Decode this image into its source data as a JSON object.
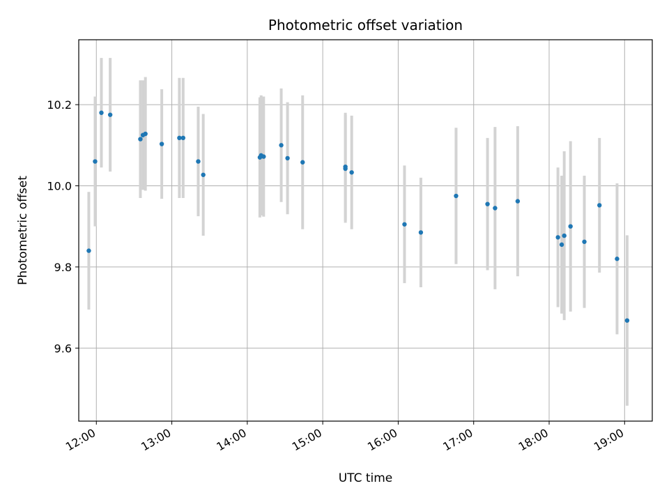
{
  "chart_data": {
    "type": "scatter",
    "title": "Photometric offset variation",
    "xlabel": "UTC time",
    "ylabel": "Photometric offset",
    "x_axis_type": "time",
    "xlim": [
      "11:46",
      "19:22"
    ],
    "ylim": [
      9.42,
      10.36
    ],
    "x_ticks": [
      "12:00",
      "13:00",
      "14:00",
      "15:00",
      "16:00",
      "17:00",
      "18:00",
      "19:00"
    ],
    "y_ticks": [
      "9.6",
      "9.8",
      "10.0",
      "10.2"
    ],
    "grid": true,
    "legend": "none",
    "marker_color": "#1f77b4",
    "errorbar_color": "#d3d3d3",
    "series": [
      {
        "points": [
          {
            "x": "11:54",
            "y": 9.84,
            "err": 0.145
          },
          {
            "x": "11:59",
            "y": 10.06,
            "err": 0.16
          },
          {
            "x": "12:04",
            "y": 10.18,
            "err": 0.135
          },
          {
            "x": "12:11",
            "y": 10.175,
            "err": 0.14
          },
          {
            "x": "12:35",
            "y": 10.115,
            "err": 0.145
          },
          {
            "x": "12:37",
            "y": 10.125,
            "err": 0.135
          },
          {
            "x": "12:39",
            "y": 10.128,
            "err": 0.14
          },
          {
            "x": "12:52",
            "y": 10.103,
            "err": 0.135
          },
          {
            "x": "13:06",
            "y": 10.118,
            "err": 0.148
          },
          {
            "x": "13:09",
            "y": 10.118,
            "err": 0.148
          },
          {
            "x": "13:21",
            "y": 10.06,
            "err": 0.135
          },
          {
            "x": "13:25",
            "y": 10.027,
            "err": 0.15
          },
          {
            "x": "14:10",
            "y": 10.07,
            "err": 0.148
          },
          {
            "x": "14:11",
            "y": 10.075,
            "err": 0.148
          },
          {
            "x": "14:13",
            "y": 10.072,
            "err": 0.148
          },
          {
            "x": "14:27",
            "y": 10.1,
            "err": 0.14
          },
          {
            "x": "14:32",
            "y": 10.068,
            "err": 0.138
          },
          {
            "x": "14:44",
            "y": 10.058,
            "err": 0.165
          },
          {
            "x": "15:18",
            "y": 10.047,
            "err": 0.133
          },
          {
            "x": "15:18",
            "y": 10.042,
            "err": 0.133
          },
          {
            "x": "15:23",
            "y": 10.033,
            "err": 0.14
          },
          {
            "x": "16:05",
            "y": 9.905,
            "err": 0.145
          },
          {
            "x": "16:18",
            "y": 9.885,
            "err": 0.135
          },
          {
            "x": "16:46",
            "y": 9.975,
            "err": 0.168
          },
          {
            "x": "17:11",
            "y": 9.955,
            "err": 0.163
          },
          {
            "x": "17:17",
            "y": 9.945,
            "err": 0.2
          },
          {
            "x": "17:35",
            "y": 9.962,
            "err": 0.185
          },
          {
            "x": "18:07",
            "y": 9.873,
            "err": 0.172
          },
          {
            "x": "18:10",
            "y": 9.855,
            "err": 0.17
          },
          {
            "x": "18:12",
            "y": 9.877,
            "err": 0.208
          },
          {
            "x": "18:17",
            "y": 9.9,
            "err": 0.21
          },
          {
            "x": "18:28",
            "y": 9.862,
            "err": 0.163
          },
          {
            "x": "18:40",
            "y": 9.952,
            "err": 0.166
          },
          {
            "x": "18:54",
            "y": 9.82,
            "err": 0.186
          },
          {
            "x": "19:02",
            "y": 9.668,
            "err": 0.21
          }
        ]
      }
    ]
  }
}
